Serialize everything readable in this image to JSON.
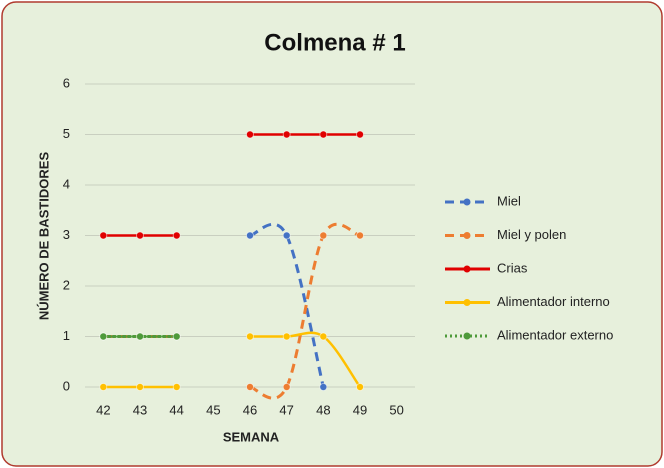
{
  "chart_data": {
    "type": "line",
    "title": "Colmena # 1",
    "x_label": "SEMANA",
    "y_label": "NÚMERO DE BASTIDORES",
    "categories": [
      "42",
      "43",
      "44",
      "45",
      "46",
      "47",
      "48",
      "49",
      "50"
    ],
    "ylim": [
      0,
      6
    ],
    "yticks": [
      0,
      1,
      2,
      3,
      4,
      5,
      6
    ],
    "grid": true,
    "smooth": true,
    "legend": "right",
    "series": [
      {
        "name": "Miel",
        "color": "#4472c4",
        "style": "dashed",
        "values": [
          1,
          1,
          1,
          null,
          3,
          3,
          0,
          null,
          null
        ]
      },
      {
        "name": "Miel y polen",
        "color": "#ed7d31",
        "style": "dashed",
        "values": [
          1,
          1,
          1,
          null,
          0,
          0,
          3,
          3,
          null
        ]
      },
      {
        "name": "Crias",
        "color": "#e00000",
        "style": "solid",
        "values": [
          3,
          3,
          3,
          null,
          5,
          5,
          5,
          5,
          null
        ]
      },
      {
        "name": "Alimentador interno",
        "color": "#ffc000",
        "style": "solid",
        "values": [
          0,
          0,
          0,
          null,
          1,
          1,
          1,
          0,
          null
        ]
      },
      {
        "name": "Alimentador externo",
        "color": "#4e9a3a",
        "style": "dotted",
        "values": [
          1,
          1,
          1,
          null,
          null,
          null,
          null,
          null,
          null
        ]
      }
    ]
  }
}
